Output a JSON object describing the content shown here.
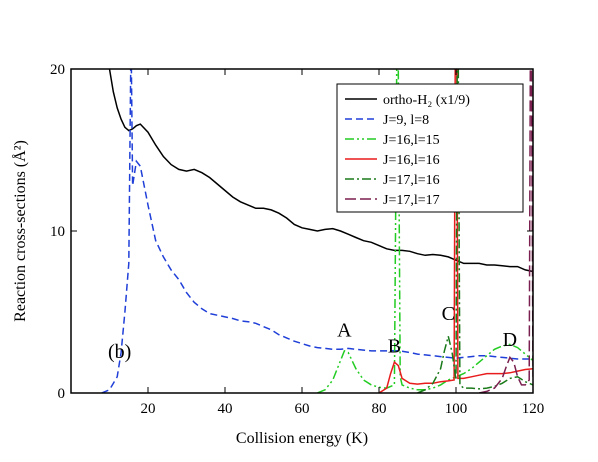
{
  "chart_data": {
    "type": "line",
    "xlabel": "Collision energy (K)",
    "ylabel": "Reaction cross-sections (Å²)",
    "xlim": [
      0,
      120
    ],
    "ylim": [
      0,
      20
    ],
    "x_ticks": [
      "20",
      "40",
      "60",
      "80",
      "100",
      "120"
    ],
    "y_ticks": [
      "0",
      "10",
      "20"
    ],
    "legend_position": "top-right",
    "panel_label": "(b)",
    "annotations": [
      {
        "text": "A",
        "x": 71,
        "y": 3.5
      },
      {
        "text": "B",
        "x": 84,
        "y": 2.5
      },
      {
        "text": "C",
        "x": 98,
        "y": 4.5
      },
      {
        "text": "D",
        "x": 114,
        "y": 2.9
      }
    ],
    "series": [
      {
        "name": "ortho-H₂ (x1/9)",
        "color": "#000000",
        "dash": "solid",
        "points": [
          [
            10,
            20
          ],
          [
            11,
            18.6
          ],
          [
            12,
            17.6
          ],
          [
            13,
            16.9
          ],
          [
            14,
            16.4
          ],
          [
            15,
            16.2
          ],
          [
            16,
            16.3
          ],
          [
            17,
            16.5
          ],
          [
            18,
            16.6
          ],
          [
            20,
            16.1
          ],
          [
            22,
            15.3
          ],
          [
            24,
            14.6
          ],
          [
            26,
            14.1
          ],
          [
            28,
            13.8
          ],
          [
            30,
            13.7
          ],
          [
            32,
            13.8
          ],
          [
            34,
            13.6
          ],
          [
            36,
            13.3
          ],
          [
            38,
            12.9
          ],
          [
            40,
            12.5
          ],
          [
            42,
            12.1
          ],
          [
            44,
            11.8
          ],
          [
            46,
            11.6
          ],
          [
            48,
            11.4
          ],
          [
            50,
            11.4
          ],
          [
            52,
            11.3
          ],
          [
            54,
            11.1
          ],
          [
            56,
            10.8
          ],
          [
            58,
            10.4
          ],
          [
            60,
            10.2
          ],
          [
            62,
            10.1
          ],
          [
            64,
            10.0
          ],
          [
            66,
            10.1
          ],
          [
            68,
            10.15
          ],
          [
            70,
            10.0
          ],
          [
            72,
            9.8
          ],
          [
            74,
            9.6
          ],
          [
            76,
            9.4
          ],
          [
            78,
            9.3
          ],
          [
            80,
            9.1
          ],
          [
            82,
            8.9
          ],
          [
            84,
            8.8
          ],
          [
            86,
            8.8
          ],
          [
            88,
            8.75
          ],
          [
            90,
            8.6
          ],
          [
            92,
            8.5
          ],
          [
            94,
            8.55
          ],
          [
            96,
            8.5
          ],
          [
            98,
            8.4
          ],
          [
            100,
            8.2
          ],
          [
            102,
            8.0
          ],
          [
            104,
            8.0
          ],
          [
            106,
            8.0
          ],
          [
            108,
            7.9
          ],
          [
            110,
            7.9
          ],
          [
            112,
            7.85
          ],
          [
            114,
            7.8
          ],
          [
            116,
            7.8
          ],
          [
            118,
            7.6
          ],
          [
            120,
            7.5
          ]
        ]
      },
      {
        "name": "J=9,  l=8",
        "color": "#1f3fd8",
        "dash": "dashed",
        "points": [
          [
            8,
            0
          ],
          [
            10,
            0.2
          ],
          [
            12,
            1.0
          ],
          [
            13,
            2.5
          ],
          [
            14,
            5.0
          ],
          [
            15,
            8.0
          ],
          [
            15.5,
            20
          ],
          [
            15.7,
            20
          ],
          [
            16,
            12.8
          ],
          [
            17,
            14.3
          ],
          [
            18,
            14.0
          ],
          [
            20,
            11.6
          ],
          [
            22,
            9.4
          ],
          [
            24,
            8.4
          ],
          [
            26,
            7.6
          ],
          [
            28,
            7.0
          ],
          [
            30,
            6.2
          ],
          [
            32,
            5.6
          ],
          [
            34,
            5.2
          ],
          [
            36,
            4.9
          ],
          [
            38,
            4.8
          ],
          [
            40,
            4.7
          ],
          [
            42,
            4.6
          ],
          [
            44,
            4.45
          ],
          [
            46,
            4.4
          ],
          [
            48,
            4.3
          ],
          [
            50,
            4.1
          ],
          [
            52,
            3.9
          ],
          [
            54,
            3.6
          ],
          [
            56,
            3.4
          ],
          [
            58,
            3.2
          ],
          [
            60,
            3.05
          ],
          [
            62,
            2.9
          ],
          [
            64,
            2.8
          ],
          [
            66,
            2.75
          ],
          [
            68,
            2.7
          ],
          [
            70,
            2.7
          ],
          [
            72,
            2.75
          ],
          [
            74,
            2.7
          ],
          [
            76,
            2.65
          ],
          [
            78,
            2.6
          ],
          [
            80,
            2.6
          ],
          [
            82,
            2.6
          ],
          [
            84,
            2.62
          ],
          [
            86,
            2.58
          ],
          [
            88,
            2.5
          ],
          [
            90,
            2.4
          ],
          [
            92,
            2.35
          ],
          [
            94,
            2.3
          ],
          [
            96,
            2.25
          ],
          [
            98,
            2.2
          ],
          [
            100,
            2.15
          ],
          [
            102,
            2.2
          ],
          [
            104,
            2.25
          ],
          [
            106,
            2.3
          ],
          [
            108,
            2.3
          ],
          [
            110,
            2.25
          ],
          [
            112,
            2.2
          ],
          [
            114,
            2.15
          ],
          [
            116,
            2.1
          ],
          [
            118,
            2.1
          ],
          [
            120,
            2.1
          ]
        ]
      },
      {
        "name": "J=16,l=15",
        "color": "#22cc22",
        "dash": "dash-dot-dot",
        "points": [
          [
            64,
            0
          ],
          [
            66,
            0.2
          ],
          [
            68,
            0.8
          ],
          [
            70,
            2.0
          ],
          [
            71,
            2.6
          ],
          [
            72,
            2.5
          ],
          [
            74,
            1.5
          ],
          [
            76,
            0.8
          ],
          [
            78,
            0.5
          ],
          [
            80,
            0.35
          ],
          [
            82,
            0.3
          ],
          [
            84,
            0.5
          ],
          [
            84.6,
            20
          ],
          [
            85,
            20
          ],
          [
            85.5,
            1.0
          ],
          [
            86,
            0.5
          ],
          [
            88,
            0.3
          ],
          [
            90,
            0.2
          ],
          [
            92,
            0.2
          ],
          [
            94,
            0.3
          ],
          [
            96,
            0.5
          ],
          [
            98,
            0.8
          ],
          [
            100,
            1.0
          ],
          [
            102,
            1.2
          ],
          [
            104,
            1.5
          ],
          [
            106,
            1.9
          ],
          [
            108,
            2.3
          ],
          [
            110,
            2.7
          ],
          [
            112,
            2.9
          ],
          [
            114,
            3.0
          ],
          [
            116,
            2.8
          ],
          [
            118,
            2.4
          ],
          [
            120,
            2.0
          ]
        ]
      },
      {
        "name": "J=16,l=16",
        "color": "#e81c1c",
        "dash": "solid",
        "points": [
          [
            80,
            0
          ],
          [
            82,
            0.3
          ],
          [
            83,
            1.2
          ],
          [
            84,
            1.9
          ],
          [
            85,
            1.7
          ],
          [
            86,
            0.9
          ],
          [
            88,
            0.6
          ],
          [
            90,
            0.55
          ],
          [
            92,
            0.6
          ],
          [
            94,
            0.6
          ],
          [
            96,
            0.7
          ],
          [
            98,
            0.75
          ],
          [
            99.5,
            0.8
          ],
          [
            99.8,
            20
          ],
          [
            100.2,
            20
          ],
          [
            100.5,
            0.9
          ],
          [
            102,
            0.9
          ],
          [
            104,
            1.0
          ],
          [
            106,
            1.1
          ],
          [
            108,
            1.2
          ],
          [
            110,
            1.2
          ],
          [
            112,
            1.2
          ],
          [
            114,
            1.25
          ],
          [
            116,
            1.35
          ],
          [
            118,
            1.45
          ],
          [
            120,
            1.5
          ]
        ]
      },
      {
        "name": "J=17,l=16",
        "color": "#1a7a1a",
        "dash": "dash-dot",
        "points": [
          [
            90,
            0
          ],
          [
            92,
            0.2
          ],
          [
            94,
            0.6
          ],
          [
            96,
            1.5
          ],
          [
            97,
            2.6
          ],
          [
            98,
            3.5
          ],
          [
            99,
            2.5
          ],
          [
            100,
            0.8
          ],
          [
            100.3,
            20
          ],
          [
            100.6,
            20
          ],
          [
            101,
            0.5
          ],
          [
            102,
            0.3
          ],
          [
            104,
            0.3
          ],
          [
            106,
            0.25
          ],
          [
            108,
            0.3
          ],
          [
            110,
            0.4
          ],
          [
            112,
            0.6
          ],
          [
            114,
            0.9
          ],
          [
            116,
            1.0
          ],
          [
            118,
            0.7
          ],
          [
            120,
            0.5
          ]
        ]
      },
      {
        "name": "J=17,l=17",
        "color": "#7a1f4f",
        "dash": "long-dash",
        "points": [
          [
            106,
            0
          ],
          [
            108,
            0.1
          ],
          [
            110,
            0.3
          ],
          [
            112,
            0.9
          ],
          [
            113,
            1.6
          ],
          [
            114,
            2.2
          ],
          [
            115,
            1.9
          ],
          [
            116,
            1.0
          ],
          [
            117,
            0.5
          ],
          [
            118,
            0.5
          ],
          [
            119,
            0.8
          ],
          [
            119.3,
            20
          ],
          [
            119.6,
            20
          ],
          [
            120,
            1.0
          ]
        ]
      }
    ]
  }
}
